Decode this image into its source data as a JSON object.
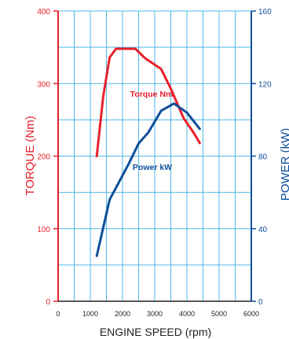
{
  "chart_data": {
    "type": "line",
    "xlabel": "ENGINE SPEED (rpm)",
    "ylabel_left": "TORQUE (Nm)",
    "ylabel_right": "POWER (kW)",
    "xlim": [
      0,
      6000
    ],
    "ylim_left": [
      0,
      400
    ],
    "ylim_right": [
      0,
      160
    ],
    "x_ticks": [
      "0",
      "1000",
      "2000",
      "3000",
      "4000",
      "5000",
      "6000"
    ],
    "y_left_ticks": [
      "0",
      "100",
      "200",
      "300",
      "400"
    ],
    "y_right_ticks": [
      "0",
      "40",
      "80",
      "120",
      "160"
    ],
    "grid": true,
    "colors": {
      "torque": "#e8212b",
      "power": "#0e4f9a",
      "grid": "#4fb8e6",
      "left_axis": "#e8212b",
      "right_axis": "#0e4f9a"
    },
    "series": [
      {
        "name": "Torque Nm",
        "axis": "left",
        "x": [
          1200,
          1400,
          1600,
          1800,
          2000,
          2400,
          2700,
          3000,
          3200,
          3500,
          3900,
          4200,
          4400
        ],
        "values": [
          200,
          282,
          336,
          348,
          348,
          348,
          335,
          326,
          320,
          293,
          252,
          233,
          218
        ]
      },
      {
        "name": "Power kW",
        "axis": "right",
        "x": [
          1200,
          1600,
          1900,
          2200,
          2500,
          2800,
          3200,
          3600,
          4000,
          4400
        ],
        "values": [
          25,
          56,
          66,
          76,
          87,
          93,
          105,
          109,
          104,
          95
        ]
      }
    ]
  }
}
